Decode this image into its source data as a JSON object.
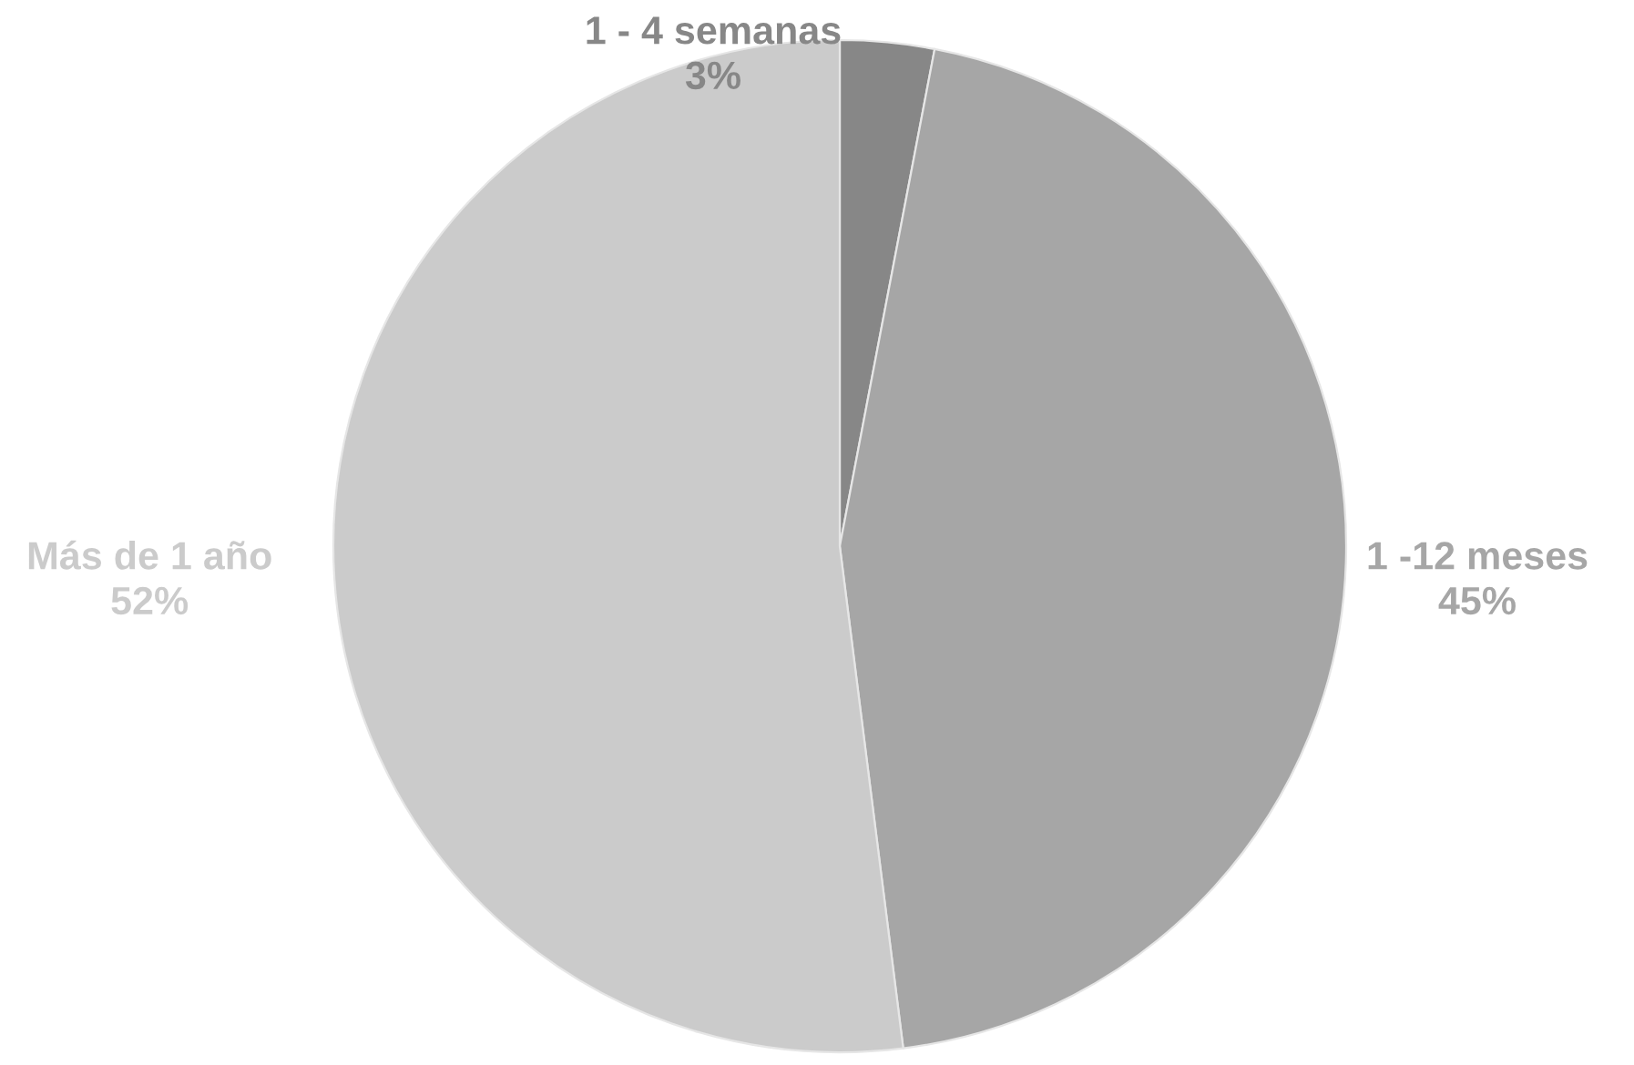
{
  "chart_data": {
    "type": "pie",
    "categories": [
      "1 - 4 semanas",
      "1 -12 meses",
      "Más de 1 año"
    ],
    "values": [
      3,
      45,
      52
    ],
    "value_labels": [
      "3%",
      "45%",
      "52%"
    ],
    "colors": [
      "#878787",
      "#a6a6a6",
      "#cbcbcb"
    ]
  }
}
